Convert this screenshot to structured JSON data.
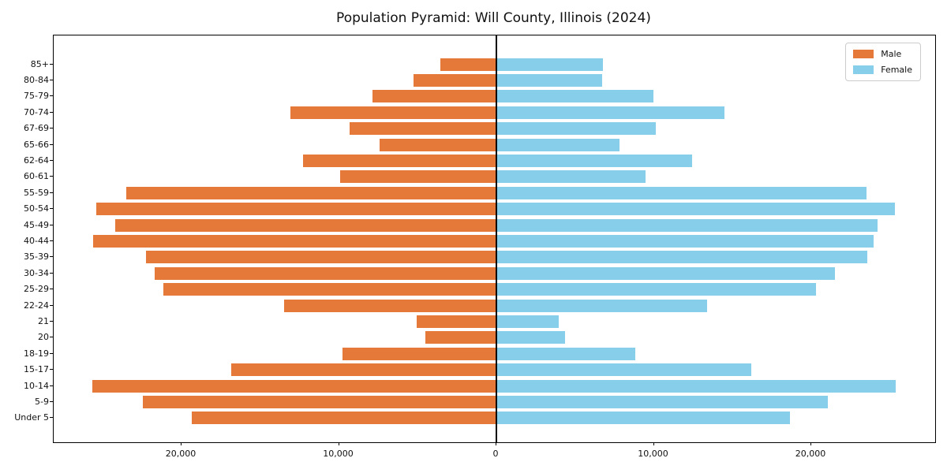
{
  "title": "Population Pyramid: Will County, Illinois (2024)",
  "legend": {
    "male_label": "Male",
    "female_label": "Female"
  },
  "colors": {
    "male": "#e5793a",
    "female": "#87ceeb",
    "axis": "#000000",
    "zero_line": "#000000"
  },
  "chart_data": {
    "type": "bar",
    "subtype": "population-pyramid",
    "title": "Population Pyramid: Will County, Illinois (2024)",
    "categories": [
      "85+",
      "80-84",
      "75-79",
      "70-74",
      "67-69",
      "65-66",
      "62-64",
      "60-61",
      "55-59",
      "50-54",
      "45-49",
      "40-44",
      "35-39",
      "30-34",
      "25-29",
      "22-24",
      "21",
      "20",
      "18-19",
      "15-17",
      "10-14",
      "5-9",
      "Under 5"
    ],
    "series": [
      {
        "name": "Male",
        "side": "left",
        "color": "#e5793a",
        "values": [
          3550,
          5250,
          7850,
          13100,
          9300,
          7400,
          12300,
          9900,
          23500,
          25400,
          24200,
          25600,
          22250,
          21700,
          21150,
          13500,
          5050,
          4500,
          9750,
          16850,
          25650,
          22450,
          19350
        ]
      },
      {
        "name": "Female",
        "side": "right",
        "color": "#87ceeb",
        "values": [
          6750,
          6700,
          9950,
          14500,
          10150,
          7800,
          12450,
          9450,
          23500,
          25300,
          24200,
          23950,
          23550,
          21500,
          20300,
          13400,
          3950,
          4350,
          8800,
          16200,
          25350,
          21050,
          18650
        ]
      }
    ],
    "xlabel": "",
    "ylabel": "",
    "x_axis": {
      "ticks": [
        -20000,
        -10000,
        0,
        10000,
        20000
      ],
      "tick_labels": [
        "20,000",
        "10,000",
        "0",
        "10,000",
        "20,000"
      ],
      "range": [
        -28100,
        27900
      ]
    },
    "grid": false,
    "legend_position": "upper right"
  }
}
